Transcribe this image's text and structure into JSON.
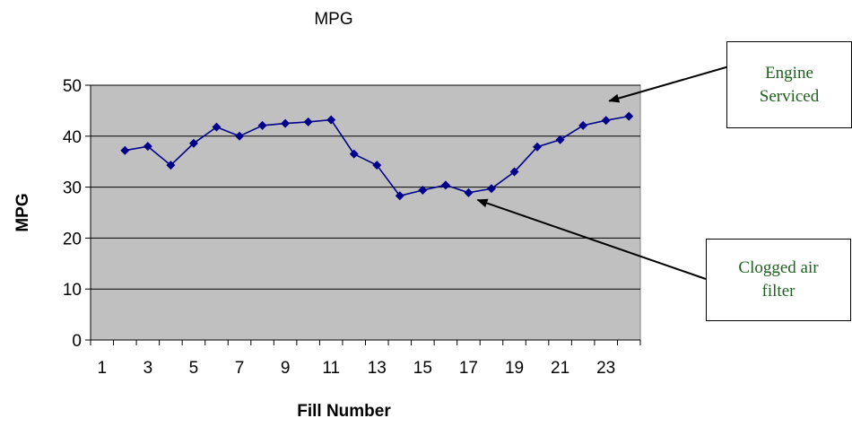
{
  "chart_data": {
    "type": "line",
    "title": "MPG",
    "xlabel": "Fill Number",
    "ylabel": "MPG",
    "x": [
      2,
      3,
      4,
      5,
      6,
      7,
      8,
      9,
      10,
      11,
      12,
      13,
      14,
      15,
      16,
      17,
      18,
      19,
      20,
      21,
      22,
      23,
      24
    ],
    "series": [
      {
        "values": [
          37.2,
          38.0,
          34.3,
          38.6,
          41.8,
          40.0,
          42.1,
          42.5,
          42.8,
          43.2,
          36.5,
          34.3,
          28.3,
          29.4,
          30.4,
          28.9,
          29.7,
          33.0,
          37.9,
          39.3,
          42.1,
          43.1,
          43.9
        ],
        "color": "#00008b"
      }
    ],
    "xlim": [
      0.5,
      24.5
    ],
    "ylim": [
      0,
      50
    ],
    "yticks": [
      0,
      10,
      20,
      30,
      40,
      50
    ],
    "xtick_labels": [
      "1",
      "3",
      "5",
      "7",
      "9",
      "11",
      "13",
      "15",
      "17",
      "19",
      "21",
      "23"
    ],
    "grid": "horizontal",
    "plot_background": "#c0c0c0",
    "legend": "none",
    "annotations": [
      {
        "text_lines": [
          "Engine",
          "Serviced"
        ],
        "points_to_x": 24
      },
      {
        "text_lines": [
          "Clogged air",
          "filter"
        ],
        "points_to_x": 17
      }
    ]
  }
}
